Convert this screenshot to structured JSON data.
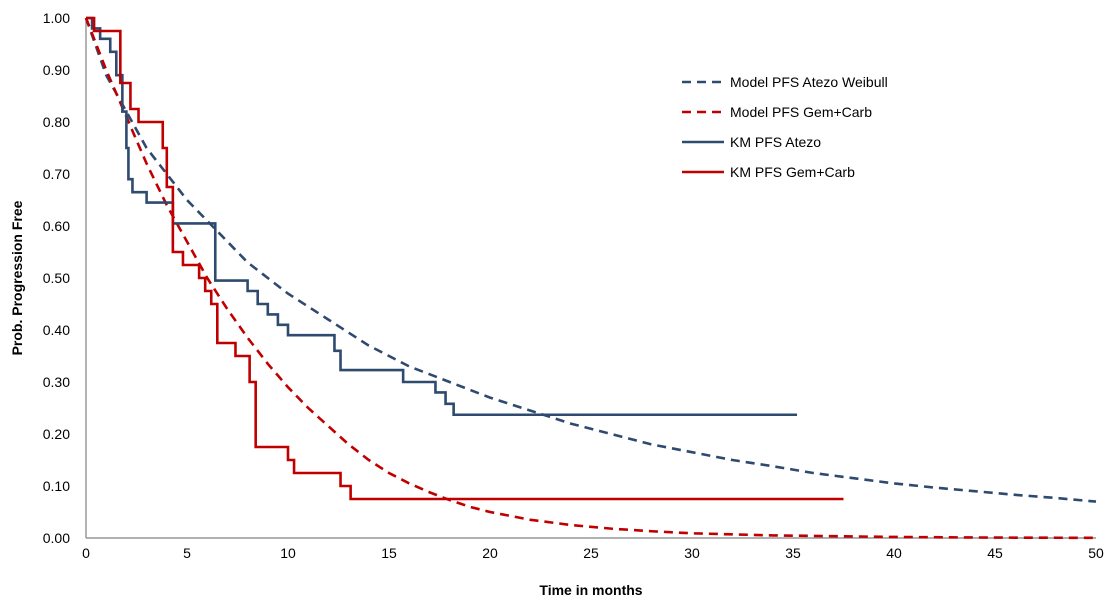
{
  "chart_data": {
    "type": "line",
    "title": "",
    "xlabel": "Time in months",
    "ylabel": "Prob. Progression Free",
    "xlim": [
      0,
      50
    ],
    "ylim": [
      0,
      1
    ],
    "x_ticks": [
      "0",
      "5",
      "10",
      "15",
      "20",
      "25",
      "30",
      "35",
      "40",
      "45",
      "50"
    ],
    "y_ticks": [
      "0.00",
      "0.10",
      "0.20",
      "0.30",
      "0.40",
      "0.50",
      "0.60",
      "0.70",
      "0.80",
      "0.90",
      "1.00"
    ],
    "grid": false,
    "legend_position": "top-right",
    "series": [
      {
        "name": "Model PFS Atezo Weibull",
        "style": "dashed",
        "color": "#2E4A6F",
        "x": [
          0,
          1,
          2,
          3,
          4,
          5,
          6,
          7,
          8,
          9,
          10,
          12,
          14,
          16,
          18,
          20,
          22,
          24,
          26,
          28,
          30,
          32,
          34,
          36,
          38,
          40,
          42,
          44,
          46,
          48,
          50
        ],
        "y": [
          1.0,
          0.89,
          0.82,
          0.75,
          0.7,
          0.65,
          0.61,
          0.57,
          0.53,
          0.5,
          0.47,
          0.42,
          0.37,
          0.33,
          0.3,
          0.27,
          0.245,
          0.22,
          0.2,
          0.18,
          0.165,
          0.15,
          0.138,
          0.125,
          0.115,
          0.105,
          0.097,
          0.09,
          0.083,
          0.077,
          0.07
        ]
      },
      {
        "name": "Model PFS Gem+Carb",
        "style": "dashed",
        "color": "#C00000",
        "x": [
          0,
          1,
          2,
          3,
          4,
          5,
          6,
          7,
          8,
          9,
          10,
          11,
          12,
          13,
          14,
          15,
          16,
          17,
          18,
          19,
          20,
          22,
          24,
          26,
          28,
          30,
          32,
          34,
          36,
          38,
          40,
          42,
          44,
          46,
          48,
          50
        ],
        "y": [
          1.0,
          0.9,
          0.81,
          0.72,
          0.64,
          0.57,
          0.5,
          0.44,
          0.385,
          0.335,
          0.29,
          0.25,
          0.215,
          0.18,
          0.15,
          0.125,
          0.105,
          0.088,
          0.073,
          0.06,
          0.05,
          0.035,
          0.025,
          0.018,
          0.013,
          0.009,
          0.007,
          0.005,
          0.004,
          0.003,
          0.002,
          0.0015,
          0.001,
          0.0007,
          0.0005,
          0.0003
        ]
      },
      {
        "name": "KM PFS Atezo",
        "style": "solid",
        "color": "#2E4A6F",
        "x": [
          0,
          0.3,
          0.3,
          0.7,
          0.7,
          1.2,
          1.2,
          1.5,
          1.5,
          1.8,
          1.8,
          2.0,
          2.0,
          2.1,
          2.1,
          2.3,
          2.3,
          2.6,
          2.6,
          3.0,
          3.0,
          4.3,
          4.3,
          6.0,
          6.0,
          6.4,
          6.4,
          8.0,
          8.0,
          8.5,
          8.5,
          9.0,
          9.0,
          9.5,
          9.5,
          10.0,
          10.0,
          12.3,
          12.3,
          12.6,
          12.6,
          15.7,
          15.7,
          17.3,
          17.3,
          17.8,
          17.8,
          18.2,
          18.2,
          19.0,
          19.0,
          35.2
        ],
        "y": [
          1.0,
          1.0,
          0.98,
          0.98,
          0.96,
          0.96,
          0.935,
          0.935,
          0.89,
          0.89,
          0.82,
          0.82,
          0.75,
          0.75,
          0.69,
          0.69,
          0.665,
          0.665,
          0.665,
          0.665,
          0.645,
          0.645,
          0.605,
          0.605,
          0.605,
          0.605,
          0.495,
          0.495,
          0.475,
          0.475,
          0.45,
          0.45,
          0.43,
          0.43,
          0.41,
          0.41,
          0.39,
          0.39,
          0.36,
          0.36,
          0.323,
          0.323,
          0.3,
          0.3,
          0.28,
          0.28,
          0.258,
          0.258,
          0.237,
          0.237,
          0.237,
          0.237
        ]
      },
      {
        "name": "KM PFS Gem+Carb",
        "style": "solid",
        "color": "#C00000",
        "x": [
          0,
          0.4,
          0.4,
          1.7,
          1.7,
          2.2,
          2.2,
          2.6,
          2.6,
          3.0,
          3.0,
          3.8,
          3.8,
          4.0,
          4.0,
          4.3,
          4.3,
          4.8,
          4.8,
          5.6,
          5.6,
          5.9,
          5.9,
          6.2,
          6.2,
          6.5,
          6.5,
          7.4,
          7.4,
          8.1,
          8.1,
          8.4,
          8.4,
          8.6,
          8.6,
          10.0,
          10.0,
          10.3,
          10.3,
          12.6,
          12.6,
          13.1,
          13.1,
          37.5
        ],
        "y": [
          1.0,
          1.0,
          0.975,
          0.975,
          0.875,
          0.875,
          0.825,
          0.825,
          0.8,
          0.8,
          0.8,
          0.8,
          0.75,
          0.75,
          0.675,
          0.675,
          0.55,
          0.55,
          0.525,
          0.525,
          0.5,
          0.5,
          0.475,
          0.475,
          0.45,
          0.45,
          0.375,
          0.375,
          0.35,
          0.35,
          0.3,
          0.3,
          0.175,
          0.175,
          0.175,
          0.175,
          0.15,
          0.15,
          0.125,
          0.125,
          0.1,
          0.1,
          0.075,
          0.075
        ]
      }
    ]
  }
}
